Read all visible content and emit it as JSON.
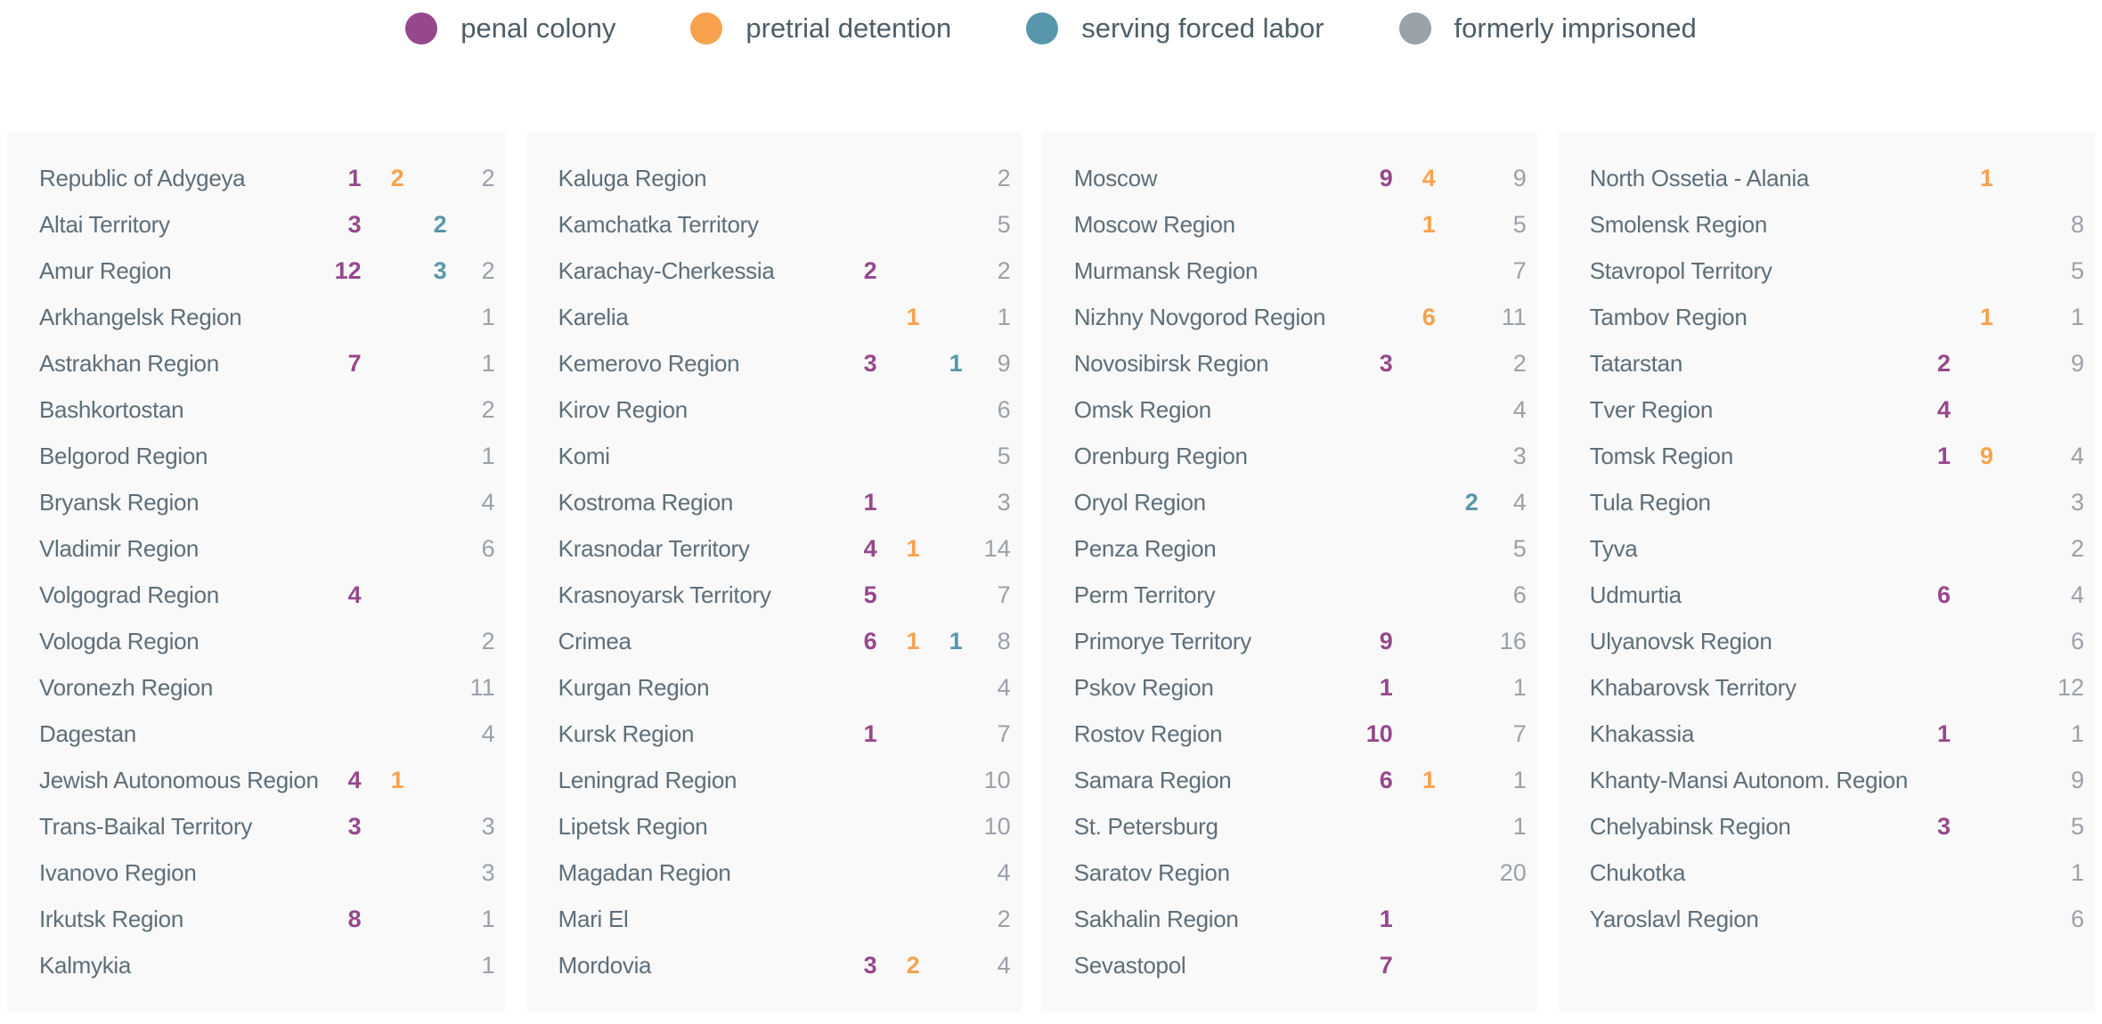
{
  "chart_data": {
    "type": "table",
    "legend": [
      {
        "key": "penal",
        "label": "penal colony",
        "color": "#96488c"
      },
      {
        "key": "pretrial",
        "label": "pretrial detention",
        "color": "#f9a24d"
      },
      {
        "key": "forced",
        "label": "serving forced labor",
        "color": "#5897ab"
      },
      {
        "key": "former",
        "label": "formerly imprisoned",
        "color": "#9aa1a9"
      }
    ],
    "column_keys": [
      "penal",
      "pretrial",
      "forced",
      "former"
    ],
    "columns": [
      {
        "rows": [
          {
            "name": "Republic of Adygeya",
            "penal": 1,
            "pretrial": 2,
            "forced": null,
            "former": 2
          },
          {
            "name": "Altai Territory",
            "penal": 3,
            "pretrial": null,
            "forced": 2,
            "former": null
          },
          {
            "name": "Amur Region",
            "penal": 12,
            "pretrial": null,
            "forced": 3,
            "former": 2
          },
          {
            "name": "Arkhangelsk Region",
            "penal": null,
            "pretrial": null,
            "forced": null,
            "former": 1
          },
          {
            "name": "Astrakhan Region",
            "penal": 7,
            "pretrial": null,
            "forced": null,
            "former": 1
          },
          {
            "name": "Bashkortostan",
            "penal": null,
            "pretrial": null,
            "forced": null,
            "former": 2
          },
          {
            "name": "Belgorod Region",
            "penal": null,
            "pretrial": null,
            "forced": null,
            "former": 1
          },
          {
            "name": "Bryansk Region",
            "penal": null,
            "pretrial": null,
            "forced": null,
            "former": 4
          },
          {
            "name": "Vladimir Region",
            "penal": null,
            "pretrial": null,
            "forced": null,
            "former": 6
          },
          {
            "name": "Volgograd Region",
            "penal": 4,
            "pretrial": null,
            "forced": null,
            "former": null
          },
          {
            "name": "Vologda Region",
            "penal": null,
            "pretrial": null,
            "forced": null,
            "former": 2
          },
          {
            "name": "Voronezh Region",
            "penal": null,
            "pretrial": null,
            "forced": null,
            "former": 11
          },
          {
            "name": "Dagestan",
            "penal": null,
            "pretrial": null,
            "forced": null,
            "former": 4
          },
          {
            "name": "Jewish Autonomous Region",
            "penal": 4,
            "pretrial": 1,
            "forced": null,
            "former": null
          },
          {
            "name": "Trans-Baikal Territory",
            "penal": 3,
            "pretrial": null,
            "forced": null,
            "former": 3
          },
          {
            "name": "Ivanovo Region",
            "penal": null,
            "pretrial": null,
            "forced": null,
            "former": 3
          },
          {
            "name": "Irkutsk Region",
            "penal": 8,
            "pretrial": null,
            "forced": null,
            "former": 1
          },
          {
            "name": "Kalmykia",
            "penal": null,
            "pretrial": null,
            "forced": null,
            "former": 1
          }
        ]
      },
      {
        "rows": [
          {
            "name": "Kaluga Region",
            "penal": null,
            "pretrial": null,
            "forced": null,
            "former": 2
          },
          {
            "name": "Kamchatka Territory",
            "penal": null,
            "pretrial": null,
            "forced": null,
            "former": 5
          },
          {
            "name": "Karachay-Cherkessia",
            "penal": 2,
            "pretrial": null,
            "forced": null,
            "former": 2
          },
          {
            "name": "Karelia",
            "penal": null,
            "pretrial": 1,
            "forced": null,
            "former": 1
          },
          {
            "name": "Kemerovo Region",
            "penal": 3,
            "pretrial": null,
            "forced": 1,
            "former": 9
          },
          {
            "name": "Kirov Region",
            "penal": null,
            "pretrial": null,
            "forced": null,
            "former": 6
          },
          {
            "name": "Komi",
            "penal": null,
            "pretrial": null,
            "forced": null,
            "former": 5
          },
          {
            "name": "Kostroma Region",
            "penal": 1,
            "pretrial": null,
            "forced": null,
            "former": 3
          },
          {
            "name": "Krasnodar Territory",
            "penal": 4,
            "pretrial": 1,
            "forced": null,
            "former": 14
          },
          {
            "name": "Krasnoyarsk Territory",
            "penal": 5,
            "pretrial": null,
            "forced": null,
            "former": 7
          },
          {
            "name": "Crimea",
            "penal": 6,
            "pretrial": 1,
            "forced": 1,
            "former": 8
          },
          {
            "name": "Kurgan Region",
            "penal": null,
            "pretrial": null,
            "forced": null,
            "former": 4
          },
          {
            "name": "Kursk Region",
            "penal": 1,
            "pretrial": null,
            "forced": null,
            "former": 7
          },
          {
            "name": "Leningrad Region",
            "penal": null,
            "pretrial": null,
            "forced": null,
            "former": 10
          },
          {
            "name": "Lipetsk Region",
            "penal": null,
            "pretrial": null,
            "forced": null,
            "former": 10
          },
          {
            "name": "Magadan Region",
            "penal": null,
            "pretrial": null,
            "forced": null,
            "former": 4
          },
          {
            "name": "Mari El",
            "penal": null,
            "pretrial": null,
            "forced": null,
            "former": 2
          },
          {
            "name": "Mordovia",
            "penal": 3,
            "pretrial": 2,
            "forced": null,
            "former": 4
          }
        ]
      },
      {
        "rows": [
          {
            "name": "Moscow",
            "penal": 9,
            "pretrial": 4,
            "forced": null,
            "former": 9
          },
          {
            "name": "Moscow Region",
            "penal": null,
            "pretrial": 1,
            "forced": null,
            "former": 5
          },
          {
            "name": "Murmansk Region",
            "penal": null,
            "pretrial": null,
            "forced": null,
            "former": 7
          },
          {
            "name": "Nizhny Novgorod Region",
            "penal": null,
            "pretrial": 6,
            "forced": null,
            "former": 11
          },
          {
            "name": "Novosibirsk Region",
            "penal": 3,
            "pretrial": null,
            "forced": null,
            "former": 2
          },
          {
            "name": "Omsk Region",
            "penal": null,
            "pretrial": null,
            "forced": null,
            "former": 4
          },
          {
            "name": "Orenburg Region",
            "penal": null,
            "pretrial": null,
            "forced": null,
            "former": 3
          },
          {
            "name": "Oryol Region",
            "penal": null,
            "pretrial": null,
            "forced": 2,
            "former": 4
          },
          {
            "name": "Penza Region",
            "penal": null,
            "pretrial": null,
            "forced": null,
            "former": 5
          },
          {
            "name": "Perm Territory",
            "penal": null,
            "pretrial": null,
            "forced": null,
            "former": 6
          },
          {
            "name": "Primorye Territory",
            "penal": 9,
            "pretrial": null,
            "forced": null,
            "former": 16
          },
          {
            "name": "Pskov Region",
            "penal": 1,
            "pretrial": null,
            "forced": null,
            "former": 1
          },
          {
            "name": "Rostov Region",
            "penal": 10,
            "pretrial": null,
            "forced": null,
            "former": 7
          },
          {
            "name": "Samara Region",
            "penal": 6,
            "pretrial": 1,
            "forced": null,
            "former": 1
          },
          {
            "name": "St. Petersburg",
            "penal": null,
            "pretrial": null,
            "forced": null,
            "former": 1
          },
          {
            "name": "Saratov Region",
            "penal": null,
            "pretrial": null,
            "forced": null,
            "former": 20
          },
          {
            "name": "Sakhalin Region",
            "penal": 1,
            "pretrial": null,
            "forced": null,
            "former": null
          },
          {
            "name": "Sevastopol",
            "penal": 7,
            "pretrial": null,
            "forced": null,
            "former": null
          }
        ]
      },
      {
        "rows": [
          {
            "name": "North Ossetia - Alania",
            "penal": null,
            "pretrial": 1,
            "forced": null,
            "former": null
          },
          {
            "name": "Smolensk Region",
            "penal": null,
            "pretrial": null,
            "forced": null,
            "former": 8
          },
          {
            "name": "Stavropol Territory",
            "penal": null,
            "pretrial": null,
            "forced": null,
            "former": 5
          },
          {
            "name": "Tambov Region",
            "penal": null,
            "pretrial": 1,
            "forced": null,
            "former": 1
          },
          {
            "name": "Tatarstan",
            "penal": 2,
            "pretrial": null,
            "forced": null,
            "former": 9
          },
          {
            "name": "Tver Region",
            "penal": 4,
            "pretrial": null,
            "forced": null,
            "former": null
          },
          {
            "name": "Tomsk Region",
            "penal": 1,
            "pretrial": 9,
            "forced": null,
            "former": 4
          },
          {
            "name": "Tula Region",
            "penal": null,
            "pretrial": null,
            "forced": null,
            "former": 3
          },
          {
            "name": "Tyva",
            "penal": null,
            "pretrial": null,
            "forced": null,
            "former": 2
          },
          {
            "name": "Udmurtia",
            "penal": 6,
            "pretrial": null,
            "forced": null,
            "former": 4
          },
          {
            "name": "Ulyanovsk Region",
            "penal": null,
            "pretrial": null,
            "forced": null,
            "former": 6
          },
          {
            "name": "Khabarovsk Territory",
            "penal": null,
            "pretrial": null,
            "forced": null,
            "former": 12
          },
          {
            "name": "Khakassia",
            "penal": 1,
            "pretrial": null,
            "forced": null,
            "former": 1
          },
          {
            "name": "Khanty-Mansi Autonom. Region",
            "penal": null,
            "pretrial": null,
            "forced": null,
            "former": 9
          },
          {
            "name": "Chelyabinsk Region",
            "penal": 3,
            "pretrial": null,
            "forced": null,
            "former": 5
          },
          {
            "name": "Chukotka",
            "penal": null,
            "pretrial": null,
            "forced": null,
            "former": 1
          },
          {
            "name": "Yaroslavl Region",
            "penal": null,
            "pretrial": null,
            "forced": null,
            "former": 6
          }
        ]
      }
    ]
  },
  "colors": {
    "penal": "#96488c",
    "pretrial": "#f9a24d",
    "forced": "#5897ab",
    "former": "#9aa1a9",
    "region_name": "#5e6e79",
    "legend_text": "#4e5d66",
    "panel_background": "#f9f9f9",
    "page_background": "#ffffff"
  }
}
